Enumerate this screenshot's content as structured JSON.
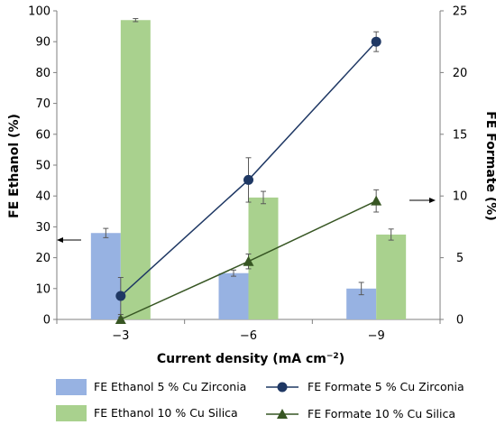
{
  "chart_data": {
    "type": "bar+line",
    "categories": [
      "−3",
      "−6",
      "−9"
    ],
    "xlabel": "Current density (mA cm",
    "xlabel_sup": "−2",
    "xlabel_end": ")",
    "ylabel_left": "FE Ethanol (%)",
    "ylabel_right": "FE Formate (%)",
    "ylim_left": [
      0,
      100
    ],
    "yticks_left": [
      "0",
      "10",
      "20",
      "30",
      "40",
      "50",
      "60",
      "70",
      "80",
      "90",
      "100"
    ],
    "ylim_right": [
      0,
      25
    ],
    "yticks_right": [
      "0",
      "5",
      "10",
      "15",
      "20",
      "25"
    ],
    "bar_series": [
      {
        "name": "FE Ethanol 5 % Cu Zirconia",
        "values": [
          28,
          15,
          10
        ],
        "errors": [
          1.5,
          1,
          2
        ],
        "color": "#97b2e2",
        "axis": "left"
      },
      {
        "name": "FE Ethanol 10 % Cu Silica",
        "values": [
          97,
          39.5,
          27.5
        ],
        "errors": [
          0.5,
          2,
          1.8
        ],
        "color": "#a9d18e",
        "axis": "left"
      }
    ],
    "line_series": [
      {
        "name": "FE Formate 5 % Cu Zirconia",
        "values": [
          1.9,
          11.3,
          22.5
        ],
        "errors": [
          1.5,
          1.8,
          0.8
        ],
        "color": "#1f3864",
        "marker": "circle",
        "axis": "right"
      },
      {
        "name": "FE Formate 10 % Cu Silica",
        "values": [
          0,
          4.7,
          9.6
        ],
        "errors": [
          0.2,
          0.6,
          0.9
        ],
        "color": "#375623",
        "marker": "triangle",
        "axis": "right"
      }
    ],
    "grid": false,
    "legend_position": "bottom"
  }
}
